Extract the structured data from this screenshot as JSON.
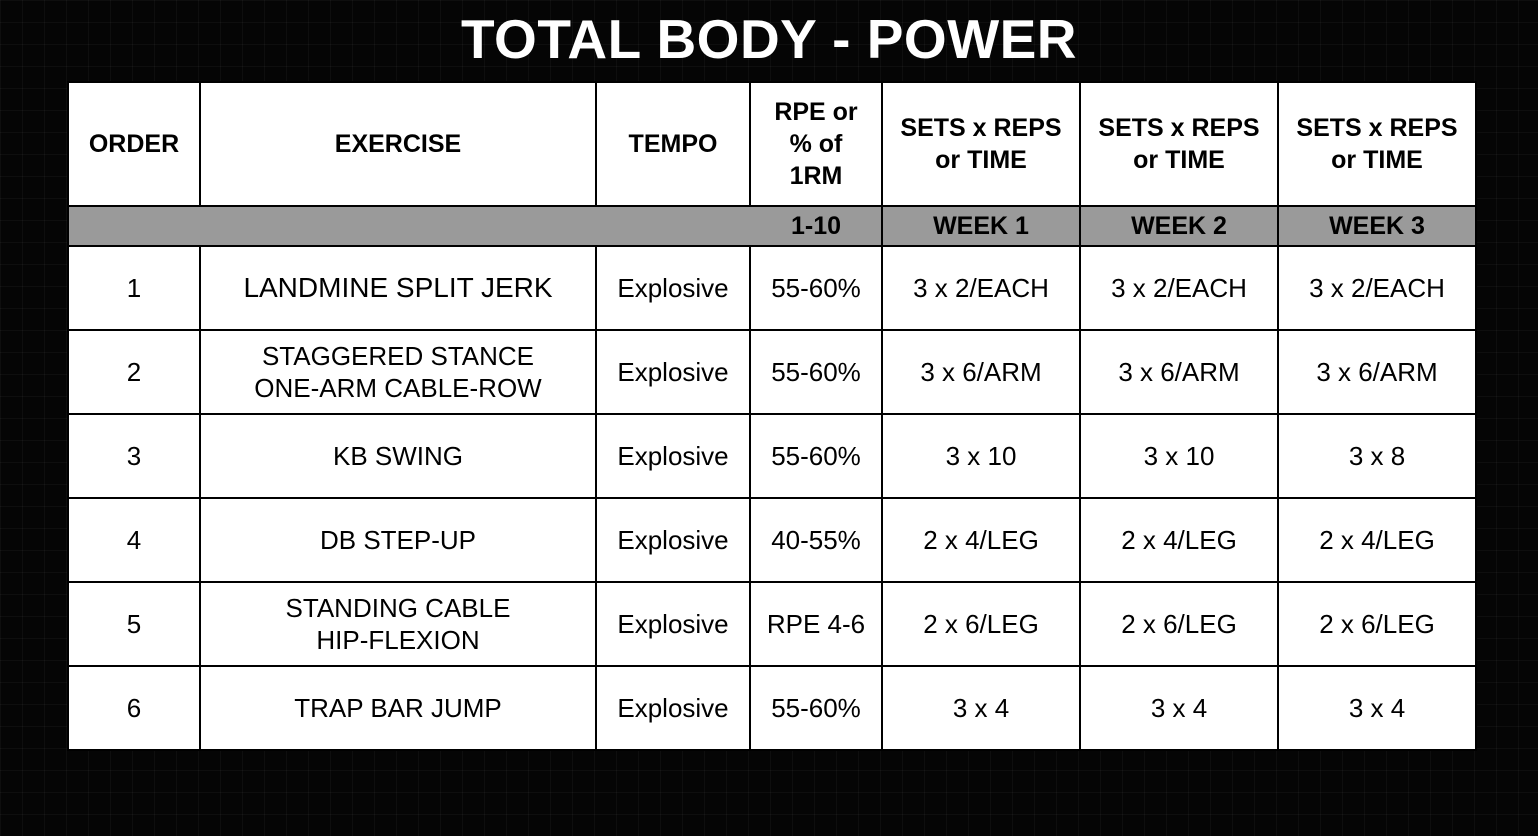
{
  "title": "TOTAL BODY - POWER",
  "headers": {
    "order": "ORDER",
    "exercise": "EXERCISE",
    "tempo": "TEMPO",
    "rpe_line1": "RPE or",
    "rpe_line2": "% of",
    "rpe_line3": "1RM",
    "week_line1": "SETS x REPS",
    "week_line2": "or TIME"
  },
  "subheader": {
    "rpe_scale": "1-10",
    "week1": "WEEK 1",
    "week2": "WEEK 2",
    "week3": "WEEK 3"
  },
  "rows": [
    {
      "order": "1",
      "exercise_line1": "LANDMINE SPLIT JERK",
      "exercise_line2": "",
      "tempo": "Explosive",
      "intensity": "55-60%",
      "week1": "3 x 2/EACH",
      "week2": "3 x 2/EACH",
      "week3": "3 x 2/EACH"
    },
    {
      "order": "2",
      "exercise_line1": "STAGGERED STANCE",
      "exercise_line2": "ONE-ARM CABLE-ROW",
      "tempo": "Explosive",
      "intensity": "55-60%",
      "week1": "3 x 6/ARM",
      "week2": "3 x 6/ARM",
      "week3": "3 x 6/ARM"
    },
    {
      "order": "3",
      "exercise_line1": "KB SWING",
      "exercise_line2": "",
      "tempo": "Explosive",
      "intensity": "55-60%",
      "week1": "3 x 10",
      "week2": "3 x 10",
      "week3": "3 x 8"
    },
    {
      "order": "4",
      "exercise_line1": "DB STEP-UP",
      "exercise_line2": "",
      "tempo": "Explosive",
      "intensity": "40-55%",
      "week1": "2 x 4/LEG",
      "week2": "2 x 4/LEG",
      "week3": "2 x 4/LEG"
    },
    {
      "order": "5",
      "exercise_line1": "STANDING CABLE",
      "exercise_line2": "HIP-FLEXION",
      "tempo": "Explosive",
      "intensity": "RPE 4-6",
      "week1": "2 x 6/LEG",
      "week2": "2 x 6/LEG",
      "week3": "2 x 6/LEG"
    },
    {
      "order": "6",
      "exercise_line1": "TRAP BAR JUMP",
      "exercise_line2": "",
      "tempo": "Explosive",
      "intensity": "55-60%",
      "week1": "3 x 4",
      "week2": "3 x 4",
      "week3": "3 x 4"
    }
  ]
}
